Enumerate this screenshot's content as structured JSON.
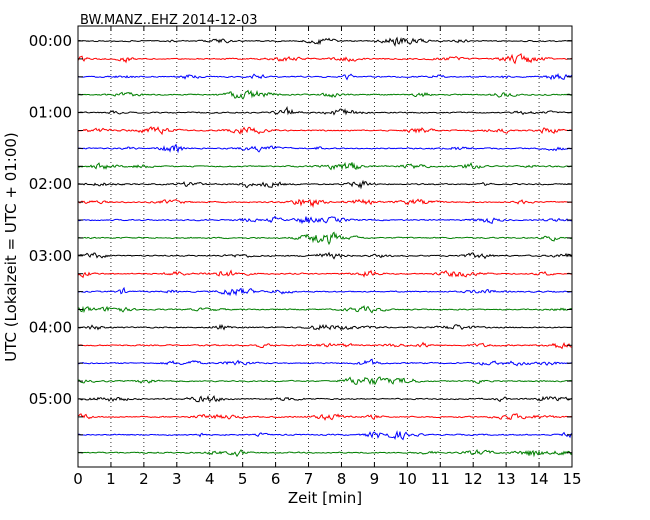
{
  "chart_data": {
    "type": "line",
    "title": "BW.MANZ..EHZ 2014-12-03",
    "xlabel": "Zeit  [min]",
    "ylabel": "UTC (Lokalzeit = UTC + 01:00)",
    "xlim": [
      0,
      15
    ],
    "x_ticks": [
      "0",
      "1",
      "2",
      "3",
      "4",
      "5",
      "6",
      "7",
      "8",
      "9",
      "10",
      "11",
      "12",
      "13",
      "14",
      "15"
    ],
    "y_tick_labels": [
      "00:00",
      "01:00",
      "02:00",
      "03:00",
      "04:00",
      "05:00"
    ],
    "grid": "vertical dotted",
    "legend": "none",
    "line_color_cycle": [
      "#000000",
      "#ff0000",
      "#0000ff",
      "#007f00"
    ],
    "traces": {
      "count": 24,
      "interval_minutes": 15,
      "start": "00:00",
      "end": "06:00"
    }
  }
}
